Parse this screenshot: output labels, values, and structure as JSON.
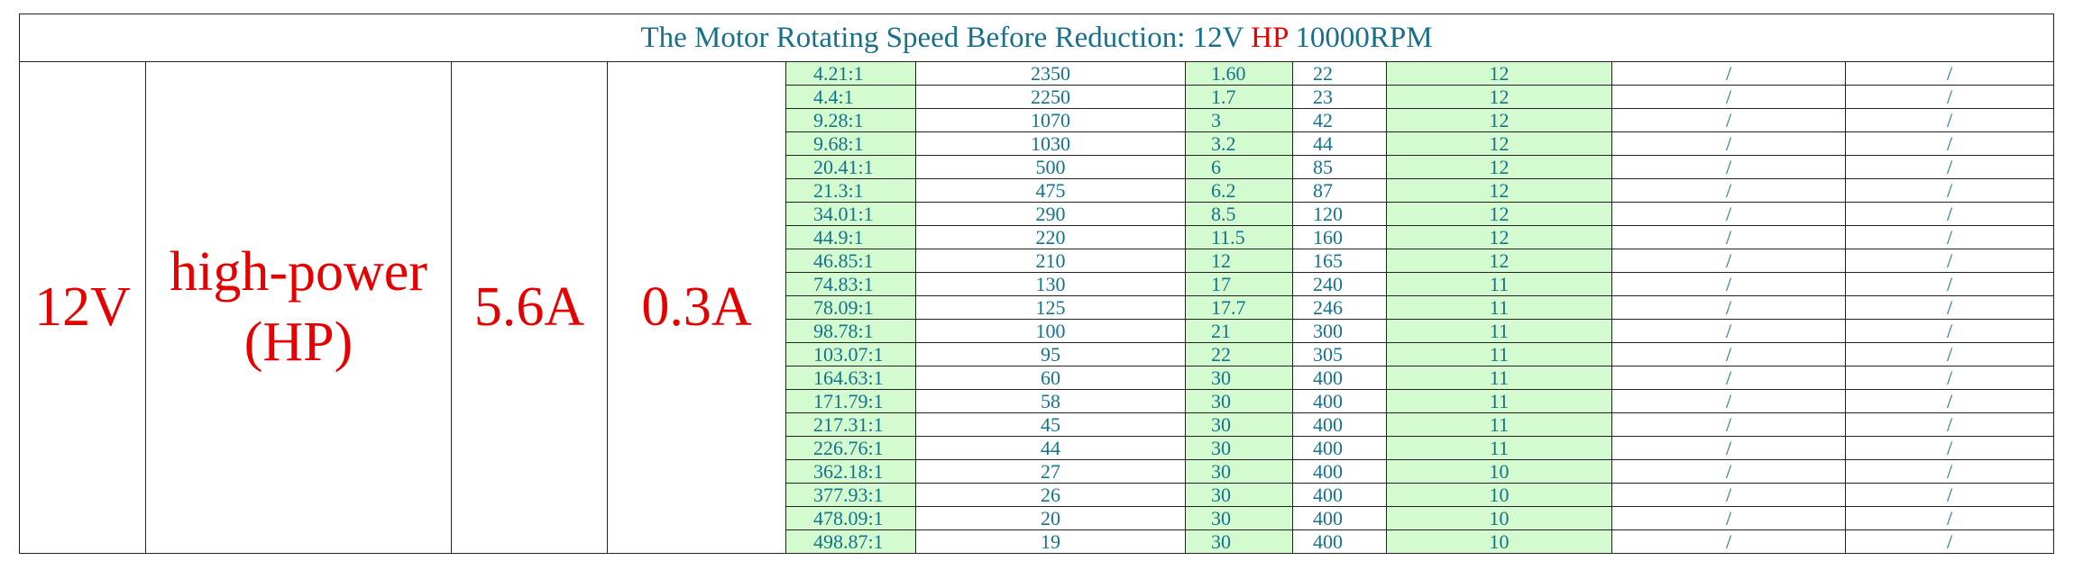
{
  "header": {
    "title_parts": [
      "The Motor Rotating Speed Before Reduction: 12V ",
      "HP",
      " 10000RPM"
    ]
  },
  "table": {
    "voltage": "12V",
    "model": "high-power (HP)",
    "current_1": "5.6A",
    "current_2": "0.3A",
    "rows": [
      [
        "4.21:1",
        "2350",
        "1.60",
        "22",
        "12",
        "/",
        "/"
      ],
      [
        "4.4:1",
        "2250",
        "1.7",
        "23",
        "12",
        "/",
        "/"
      ],
      [
        "9.28:1",
        "1070",
        "3",
        "42",
        "12",
        "/",
        "/"
      ],
      [
        "9.68:1",
        "1030",
        "3.2",
        "44",
        "12",
        "/",
        "/"
      ],
      [
        "20.41:1",
        "500",
        "6",
        "85",
        "12",
        "/",
        "/"
      ],
      [
        "21.3:1",
        "475",
        "6.2",
        "87",
        "12",
        "/",
        "/"
      ],
      [
        "34.01:1",
        "290",
        "8.5",
        "120",
        "12",
        "/",
        "/"
      ],
      [
        "44.9:1",
        "220",
        "11.5",
        "160",
        "12",
        "/",
        "/"
      ],
      [
        "46.85:1",
        "210",
        "12",
        "165",
        "12",
        "/",
        "/"
      ],
      [
        "74.83:1",
        "130",
        "17",
        "240",
        "11",
        "/",
        "/"
      ],
      [
        "78.09:1",
        "125",
        "17.7",
        "246",
        "11",
        "/",
        "/"
      ],
      [
        "98.78:1",
        "100",
        "21",
        "300",
        "11",
        "/",
        "/"
      ],
      [
        "103.07:1",
        "95",
        "22",
        "305",
        "11",
        "/",
        "/"
      ],
      [
        "164.63:1",
        "60",
        "30",
        "400",
        "11",
        "/",
        "/"
      ],
      [
        "171.79:1",
        "58",
        "30",
        "400",
        "11",
        "/",
        "/"
      ],
      [
        "217.31:1",
        "45",
        "30",
        "400",
        "11",
        "/",
        "/"
      ],
      [
        "226.76:1",
        "44",
        "30",
        "400",
        "11",
        "/",
        "/"
      ],
      [
        "362.18:1",
        "27",
        "30",
        "400",
        "10",
        "/",
        "/"
      ],
      [
        "377.93:1",
        "26",
        "30",
        "400",
        "10",
        "/",
        "/"
      ],
      [
        "478.09:1",
        "20",
        "30",
        "400",
        "10",
        "/",
        "/"
      ],
      [
        "498.87:1",
        "19",
        "30",
        "400",
        "10",
        "/",
        "/"
      ]
    ]
  }
}
